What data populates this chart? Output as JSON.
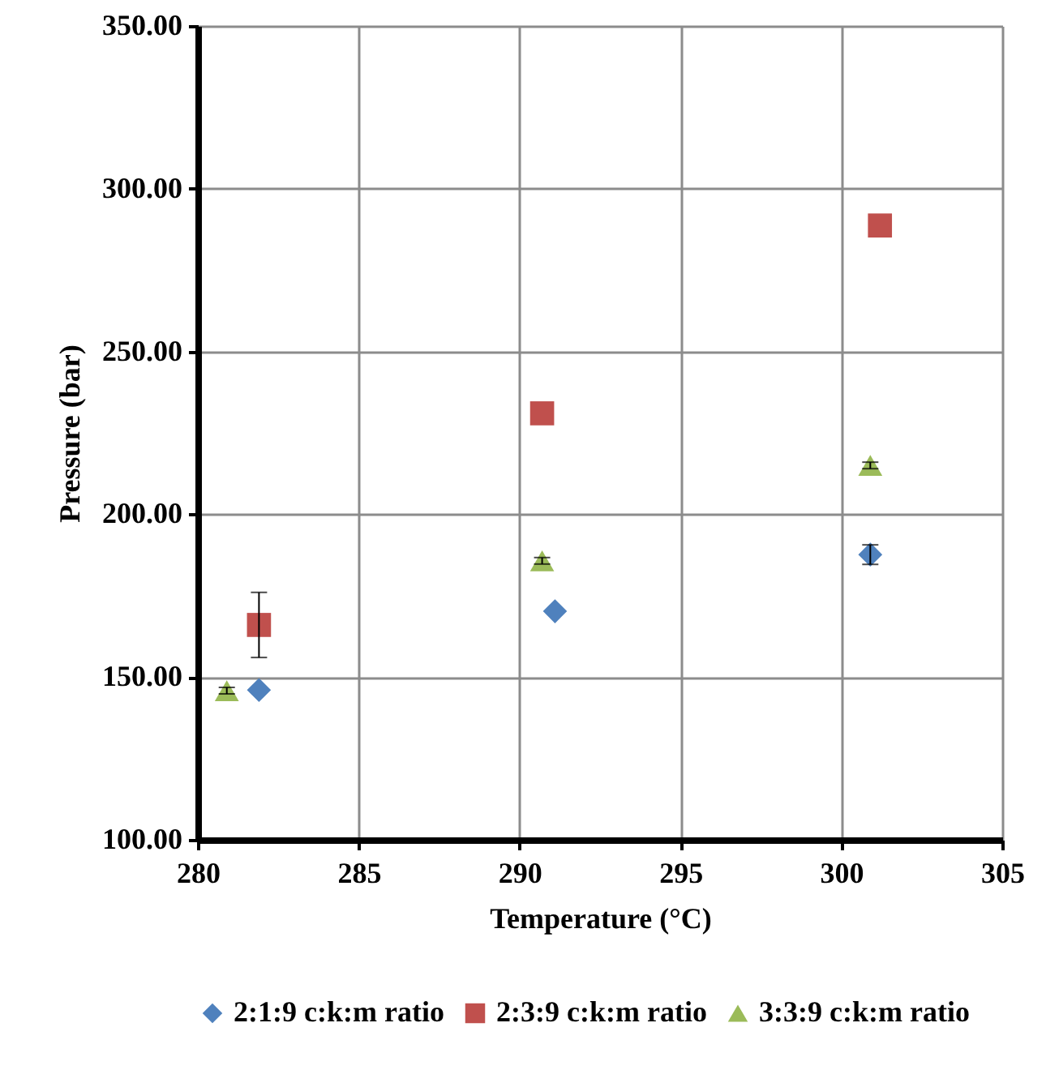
{
  "chart_data": {
    "type": "scatter",
    "xlabel": "Temperature (°C)",
    "ylabel": "Pressure (bar)",
    "xlim": [
      280,
      305
    ],
    "xticks": [
      280,
      285,
      290,
      295,
      300,
      305
    ],
    "ylim": [
      100,
      350
    ],
    "yticks": [
      {
        "value": 100,
        "label": "100.00"
      },
      {
        "value": 150,
        "label": "150.00"
      },
      {
        "value": 200,
        "label": "200.00"
      },
      {
        "value": 250,
        "label": "250.00"
      },
      {
        "value": 300,
        "label": "300.00"
      },
      {
        "value": 350,
        "label": "350.00"
      }
    ],
    "grid": true,
    "legend": "bottom",
    "series": [
      {
        "name": "2:1:9 c:k:m ratio",
        "color": "#4f81bd",
        "marker": "diamond",
        "x": [
          281.9,
          291.1,
          300.9
        ],
        "values": [
          146,
          170.2,
          187.6
        ],
        "errors": [
          null,
          null,
          3
        ]
      },
      {
        "name": "2:3:9 c:k:m ratio",
        "color": "#c0504d",
        "marker": "square",
        "x": [
          281.9,
          290.7,
          301.2
        ],
        "values": [
          166,
          231,
          288.7
        ],
        "errors": [
          10,
          null,
          null
        ]
      },
      {
        "name": "3:3:9 c:k:m ratio",
        "color": "#9bbb59",
        "marker": "triangle",
        "x": [
          280.9,
          290.7,
          300.9
        ],
        "values": [
          145.8,
          185.7,
          215
        ],
        "errors": [
          1,
          1,
          1
        ]
      }
    ]
  }
}
